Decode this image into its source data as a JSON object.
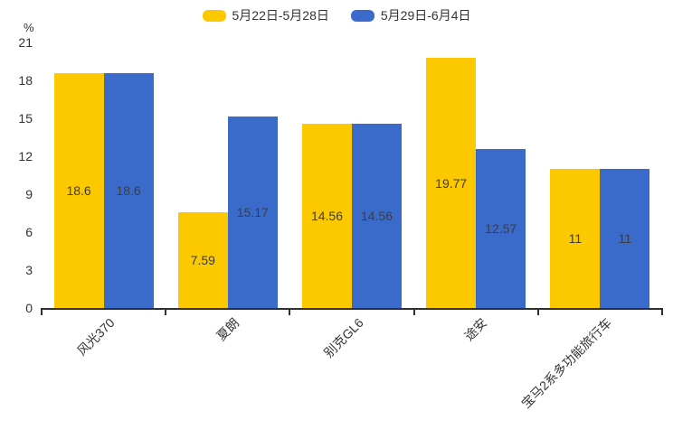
{
  "chart_data": {
    "type": "bar",
    "title": "",
    "ylabel": "%",
    "ylim": [
      0,
      21
    ],
    "yticks": [
      0,
      3,
      6,
      9,
      12,
      15,
      18,
      21
    ],
    "grid": false,
    "legend_position": "top-center",
    "categories": [
      "风光370",
      "夏朗",
      "别克GL6",
      "途安",
      "宝马2系多功能旅行车"
    ],
    "series": [
      {
        "name": "5月22日-5月28日",
        "color": "#FCC800",
        "values": [
          18.6,
          7.59,
          14.56,
          19.77,
          11
        ],
        "labels": [
          "18.6",
          "7.59",
          "14.56",
          "19.77",
          "11"
        ]
      },
      {
        "name": "5月29日-6月4日",
        "color": "#3A6BCB",
        "values": [
          18.6,
          15.17,
          14.56,
          12.57,
          11
        ],
        "labels": [
          "18.6",
          "15.17",
          "14.56",
          "12.57",
          "11"
        ]
      }
    ],
    "colors": {
      "axis": "#2f2f2f",
      "tick_label": "#333333",
      "value_label": "#3d3d3d",
      "background": "#ffffff"
    }
  }
}
